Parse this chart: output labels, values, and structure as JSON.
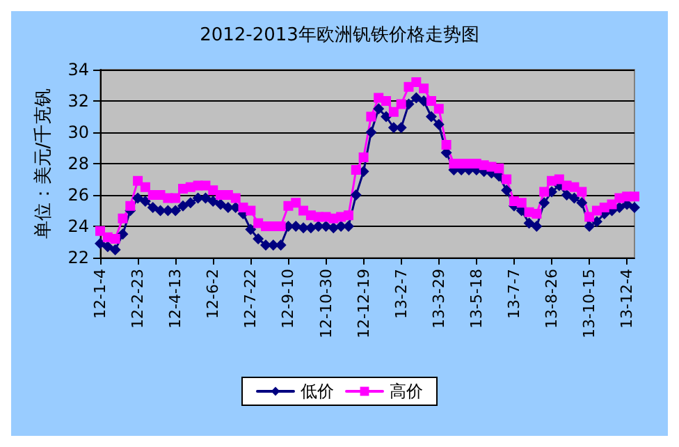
{
  "chart_data": {
    "type": "line",
    "title": "2012-2013年欧洲钒铁价格走势图",
    "ylabel": "单位：美元/千克钒",
    "categories": [
      "12-1-4",
      null,
      null,
      null,
      null,
      "12-2-23",
      null,
      null,
      null,
      null,
      "12-4-13",
      null,
      null,
      null,
      null,
      "12-6-2",
      null,
      null,
      null,
      null,
      "12-7-22",
      null,
      null,
      null,
      null,
      "12-9-10",
      null,
      null,
      null,
      null,
      "12-10-30",
      null,
      null,
      null,
      null,
      "12-12-19",
      null,
      null,
      null,
      null,
      "13-2-7",
      null,
      null,
      null,
      null,
      "13-3-29",
      null,
      null,
      null,
      null,
      "13-5-18",
      null,
      null,
      null,
      null,
      "13-7-7",
      null,
      null,
      null,
      null,
      "13-8-26",
      null,
      null,
      null,
      null,
      "13-10-15",
      null,
      null,
      null,
      null,
      "13-12-4",
      null
    ],
    "series": [
      {
        "name": "低价",
        "color": "#000080",
        "marker": "diamond",
        "values": [
          22.9,
          22.7,
          22.5,
          23.5,
          25.0,
          25.8,
          25.6,
          25.2,
          25.0,
          25.0,
          25.0,
          25.3,
          25.5,
          25.8,
          25.8,
          25.6,
          25.4,
          25.2,
          25.2,
          24.8,
          23.8,
          23.2,
          22.8,
          22.8,
          22.8,
          24.0,
          24.0,
          23.9,
          23.9,
          24.0,
          24.0,
          23.9,
          24.0,
          24.0,
          26.0,
          27.5,
          30.0,
          31.5,
          31.0,
          30.3,
          30.3,
          31.8,
          32.2,
          32.0,
          31.0,
          30.5,
          28.7,
          27.6,
          27.6,
          27.6,
          27.6,
          27.5,
          27.4,
          27.2,
          26.3,
          25.3,
          25.0,
          24.2,
          24.0,
          25.5,
          26.2,
          26.6,
          26.0,
          25.8,
          25.5,
          24.0,
          24.3,
          24.8,
          25.0,
          25.2,
          25.4,
          25.2
        ]
      },
      {
        "name": "高价",
        "color": "#ff00ff",
        "marker": "square",
        "values": [
          23.7,
          23.3,
          23.2,
          24.5,
          25.3,
          26.9,
          26.5,
          26.0,
          26.0,
          25.8,
          25.8,
          26.4,
          26.5,
          26.6,
          26.6,
          26.3,
          26.0,
          26.0,
          25.8,
          25.2,
          25.0,
          24.2,
          24.0,
          24.0,
          24.0,
          25.3,
          25.5,
          25.0,
          24.7,
          24.6,
          24.6,
          24.5,
          24.6,
          24.7,
          27.6,
          28.4,
          31.0,
          32.2,
          32.0,
          31.3,
          31.8,
          32.9,
          33.2,
          32.8,
          32.0,
          31.5,
          29.2,
          28.0,
          28.0,
          28.0,
          28.0,
          27.9,
          27.8,
          27.7,
          27.0,
          25.6,
          25.5,
          24.9,
          24.8,
          26.2,
          26.9,
          27.0,
          26.6,
          26.5,
          26.2,
          24.6,
          25.0,
          25.2,
          25.4,
          25.8,
          25.9,
          25.9
        ]
      }
    ],
    "ylim": [
      22,
      34
    ],
    "yticks": [
      22,
      24,
      26,
      28,
      30,
      32,
      34
    ],
    "grid": "y",
    "legend": "bottom",
    "line_style": "solid"
  }
}
